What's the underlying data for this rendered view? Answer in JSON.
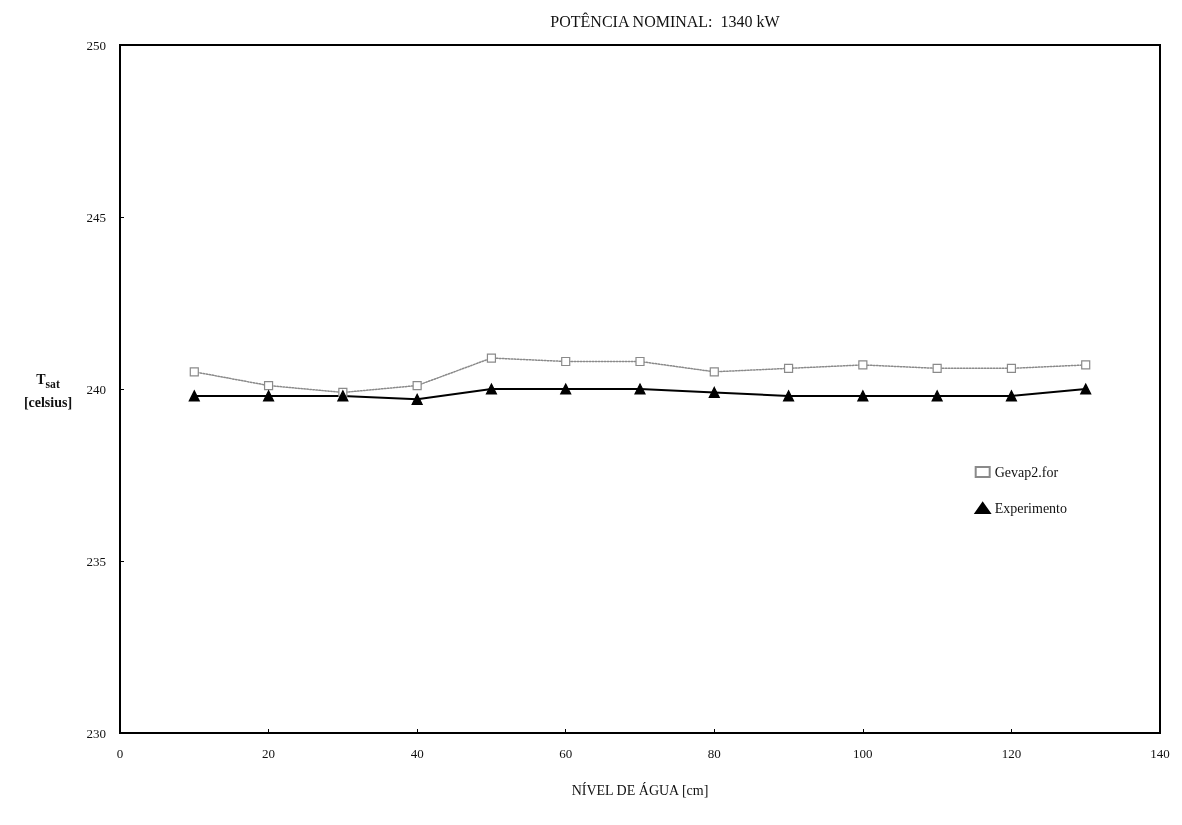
{
  "chart_data": {
    "type": "line",
    "title": "POTÊNCIA NOMINAL:  1340 kW",
    "xlabel": "NÍVEL DE ÁGUA [cm]",
    "ylabel": "T$_{sat}$ [celsius]",
    "x": [
      10,
      20,
      30,
      40,
      50,
      60,
      70,
      80,
      90,
      100,
      110,
      120,
      130
    ],
    "series": [
      {
        "name": "Gevap2.for",
        "color": "#8a8a8a",
        "marker": "square",
        "line_style": "dotted",
        "values": [
          240.5,
          240.1,
          239.9,
          240.1,
          240.9,
          240.8,
          240.8,
          240.5,
          240.6,
          240.7,
          240.6,
          240.6,
          240.7
        ]
      },
      {
        "name": "Experimento",
        "color": "#000000",
        "marker": "triangle",
        "line_style": "solid",
        "values": [
          239.8,
          239.8,
          239.8,
          239.7,
          240.0,
          240.0,
          240.0,
          239.9,
          239.8,
          239.8,
          239.8,
          239.8,
          240.0
        ]
      }
    ],
    "xlim": [
      0,
      140
    ],
    "xticks": [
      0,
      20,
      40,
      60,
      80,
      100,
      120,
      140
    ],
    "ylim": [
      230,
      250
    ],
    "yticks": [
      230,
      235,
      240,
      245,
      250
    ],
    "grid": false,
    "legend": "right"
  }
}
